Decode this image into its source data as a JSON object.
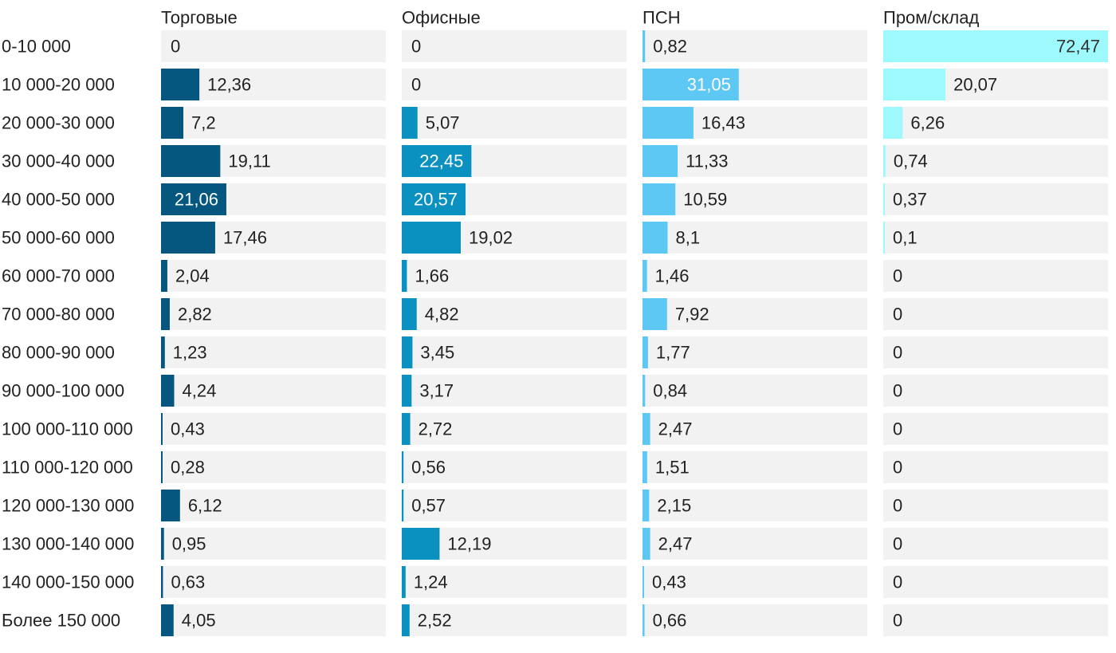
{
  "chart_data": {
    "type": "bar",
    "orientation": "horizontal",
    "layout": "small-multiples",
    "categories": [
      "0-10 000",
      "10 000-20 000",
      "20 000-30 000",
      "30 000-40 000",
      "40 000-50 000",
      "50 000-60 000",
      "60 000-70 000",
      "70 000-80 000",
      "80 000-90 000",
      "90 000-100 000",
      "100 000-110 000",
      "110 000-120 000",
      "120 000-130 000",
      "130 000-140 000",
      "140 000-150 000",
      "Более 150 000"
    ],
    "series": [
      {
        "name": "Торговые",
        "color": "#06577f",
        "values": [
          0,
          12.36,
          7.2,
          19.11,
          21.06,
          17.46,
          2.04,
          2.82,
          1.23,
          4.24,
          0.43,
          0.28,
          6.12,
          0.95,
          0.63,
          4.05
        ],
        "labels": [
          "0",
          "12,36",
          "7,2",
          "19,11",
          "21,06",
          "17,46",
          "2,04",
          "2,82",
          "1,23",
          "4,24",
          "0,43",
          "0,28",
          "6,12",
          "0,95",
          "0,63",
          "4,05"
        ]
      },
      {
        "name": "Офисные",
        "color": "#0a91bf",
        "values": [
          0,
          0,
          5.07,
          22.45,
          20.57,
          19.02,
          1.66,
          4.82,
          3.45,
          3.17,
          2.72,
          0.56,
          0.57,
          12.19,
          1.24,
          2.52
        ],
        "labels": [
          "0",
          "0",
          "5,07",
          "22,45",
          "20,57",
          "19,02",
          "1,66",
          "4,82",
          "3,45",
          "3,17",
          "2,72",
          "0,56",
          "0,57",
          "12,19",
          "1,24",
          "2,52"
        ]
      },
      {
        "name": "ПСН",
        "color": "#5ec8f4",
        "values": [
          0.82,
          31.05,
          16.43,
          11.33,
          10.59,
          8.1,
          1.46,
          7.92,
          1.77,
          0.84,
          2.47,
          1.51,
          2.15,
          2.47,
          0.43,
          0.66
        ],
        "labels": [
          "0,82",
          "31,05",
          "16,43",
          "11,33",
          "10,59",
          "8,1",
          "1,46",
          "7,92",
          "1,77",
          "0,84",
          "2,47",
          "1,51",
          "2,15",
          "2,47",
          "0,43",
          "0,66"
        ]
      },
      {
        "name": "Пром/склад",
        "color": "#9ef9fd",
        "values": [
          72.47,
          20.07,
          6.26,
          0.74,
          0.37,
          0.1,
          0,
          0,
          0,
          0,
          0,
          0,
          0,
          0,
          0,
          0
        ],
        "labels": [
          "72,47",
          "20,07",
          "6,26",
          "0,74",
          "0,37",
          "0,1",
          "0",
          "0",
          "0",
          "0",
          "0",
          "0",
          "0",
          "0",
          "0",
          "0"
        ]
      }
    ],
    "track_color": "#f2f2f2",
    "label_color_inside": "#ffffff",
    "label_color_outside": "#222222",
    "title": "",
    "xlabel": "",
    "ylabel": ""
  }
}
